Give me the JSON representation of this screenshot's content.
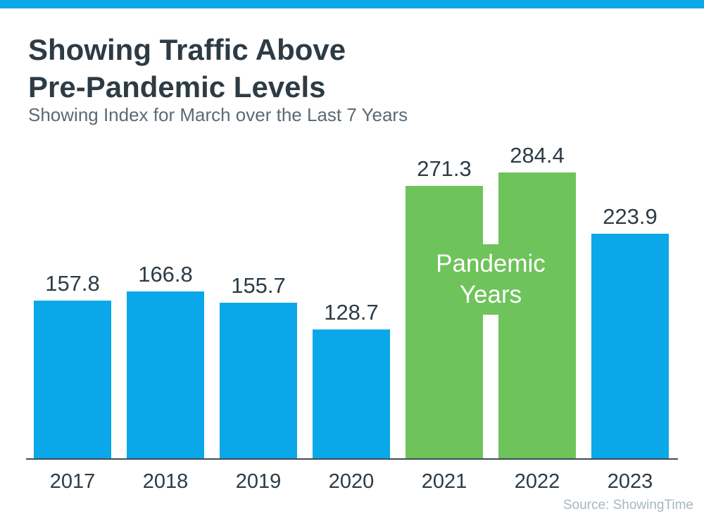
{
  "header": {
    "title_line1": "Showing Traffic Above",
    "title_line2": "Pre-Pandemic Levels",
    "subtitle": "Showing Index for March over the Last 7 Years"
  },
  "footer": {
    "source": "Source: ShowingTime"
  },
  "colors": {
    "accent_blue": "#0aa8e8",
    "bar_blue": "#0aa8e8",
    "bar_green": "#6ec35b",
    "title_text": "#2d3b45",
    "subtitle_text": "#5d6a73",
    "value_label_text": "#2d3b45",
    "axis_line": "#404b55",
    "annotation_text": "#ffffff",
    "source_text": "#aab6bf"
  },
  "chart_data": {
    "type": "bar",
    "title": "Showing Traffic Above Pre-Pandemic Levels",
    "subtitle": "Showing Index for March over the Last 7 Years",
    "categories": [
      "2017",
      "2018",
      "2019",
      "2020",
      "2021",
      "2022",
      "2023"
    ],
    "values": [
      157.8,
      166.8,
      155.7,
      128.7,
      271.3,
      284.4,
      223.9
    ],
    "value_labels": [
      "157.8",
      "166.8",
      "155.7",
      "128.7",
      "271.3",
      "284.4",
      "223.9"
    ],
    "bar_color_keys": [
      "bar_blue",
      "bar_blue",
      "bar_blue",
      "bar_blue",
      "bar_green",
      "bar_green",
      "bar_blue"
    ],
    "annotation": {
      "line1": "Pandemic",
      "line2": "Years",
      "covers": [
        "2021",
        "2022"
      ]
    },
    "xlabel": "",
    "ylabel": "",
    "ylim": [
      0,
      320
    ],
    "gridlines": false,
    "legend_position": "none",
    "y_axis_shown": false,
    "x_axis_line": true
  }
}
